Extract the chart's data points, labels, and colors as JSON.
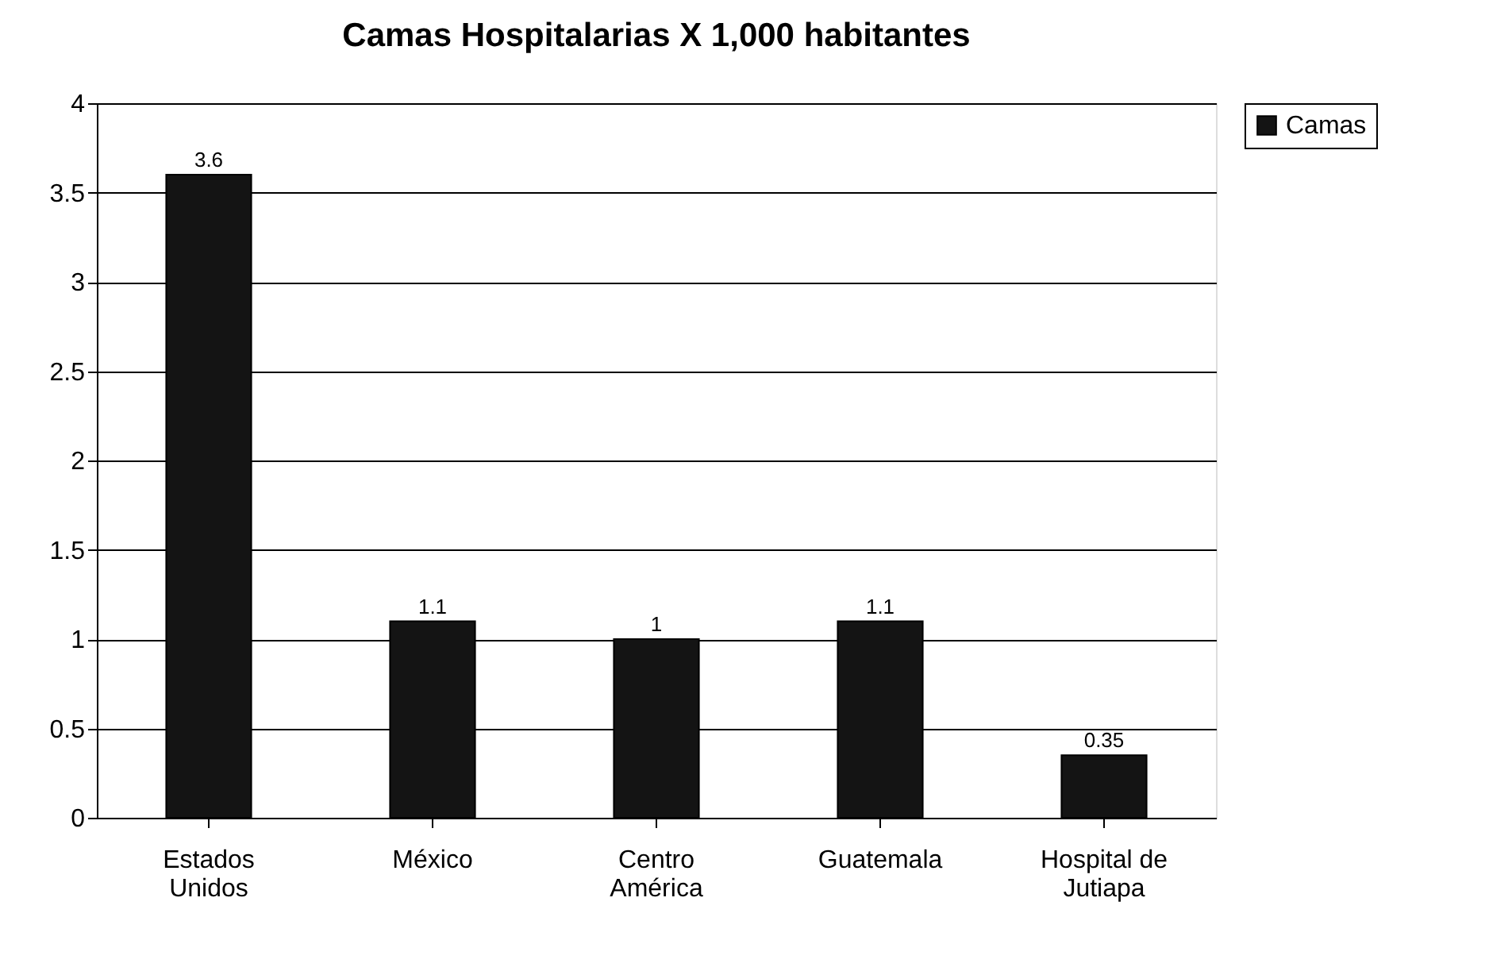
{
  "chart_data": {
    "type": "bar",
    "title": "Camas Hospitalarias X 1,000 habitantes",
    "categories": [
      "Estados Unidos",
      "México",
      "Centro América",
      "Guatemala",
      "Hospital de Jutiapa"
    ],
    "series": [
      {
        "name": "Camas",
        "color": "#141414",
        "values": [
          3.6,
          1.1,
          1,
          1.1,
          0.35
        ]
      }
    ],
    "ylim": [
      0,
      4
    ],
    "yticks": [
      0,
      0.5,
      1,
      1.5,
      2,
      2.5,
      3,
      3.5,
      4
    ],
    "grid": "y",
    "legend": "right",
    "data_labels": true
  }
}
